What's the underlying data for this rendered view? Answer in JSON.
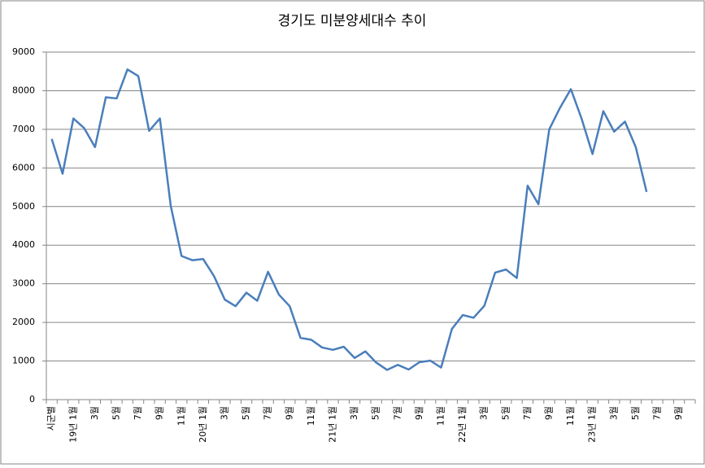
{
  "chart_data": {
    "type": "line",
    "title": "경기도 미분양세대수 추이",
    "categories": [
      "시군별",
      null,
      "19년 1월",
      null,
      "3월",
      null,
      "5월",
      null,
      "7월",
      null,
      "9월",
      null,
      "11월",
      null,
      "20년 1월",
      null,
      "3월",
      null,
      "5월",
      null,
      "7월",
      null,
      "9월",
      null,
      "11월",
      null,
      "21년 1월",
      null,
      "3월",
      null,
      "5월",
      null,
      "7월",
      null,
      "9월",
      null,
      "11월",
      null,
      "22년 1월",
      null,
      "3월",
      null,
      "5월",
      null,
      "7월",
      null,
      "9월",
      null,
      "11월",
      null,
      "23년 1월",
      null,
      "3월",
      null,
      "5월",
      null,
      "7월",
      null,
      "9월",
      null
    ],
    "series": [
      {
        "color": "#4a7ebb",
        "values": [
          6750,
          5850,
          7280,
          7030,
          6540,
          7830,
          7800,
          8550,
          8380,
          6960,
          7280,
          5020,
          3720,
          3610,
          3640,
          3200,
          2590,
          2420,
          2770,
          2560,
          3310,
          2720,
          2420,
          1600,
          1550,
          1350,
          1290,
          1370,
          1080,
          1250,
          960,
          770,
          900,
          780,
          970,
          1010,
          830,
          1830,
          2190,
          2120,
          2430,
          3290,
          3370,
          3150,
          5540,
          5060,
          7000,
          7560,
          8040,
          7270,
          6360,
          7470,
          6940,
          7200,
          6540,
          5380,
          null,
          null,
          null,
          null
        ]
      }
    ],
    "ylim": [
      0,
      9000
    ],
    "yticks": [
      0,
      1000,
      2000,
      3000,
      4000,
      5000,
      6000,
      7000,
      8000,
      9000
    ],
    "grid": true
  }
}
